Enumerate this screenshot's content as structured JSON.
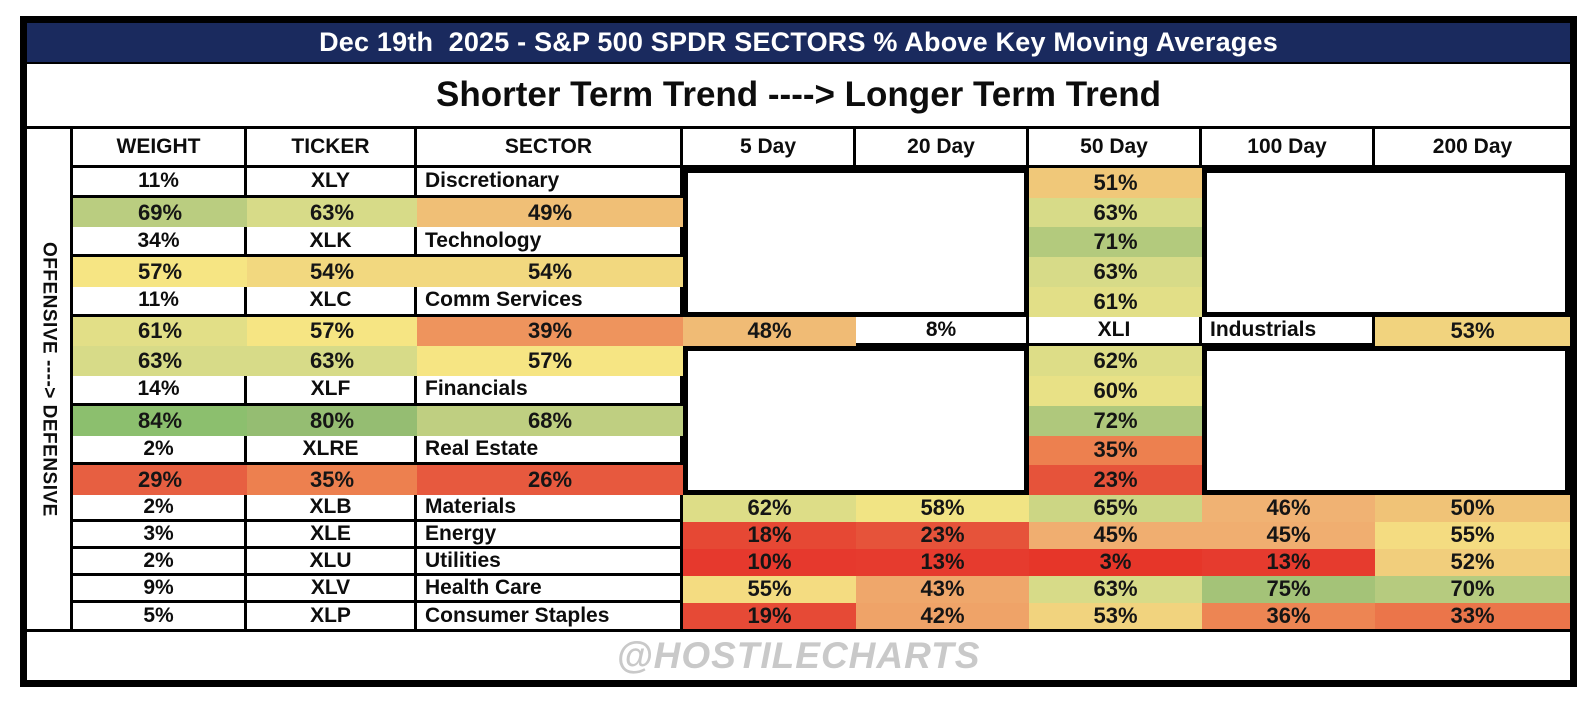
{
  "header": {
    "title": "Dec 19th  2025 - S&P 500 SPDR SECTORS % Above Key Moving Averages",
    "subtitle": "Shorter Term Trend ----> Longer Term Trend",
    "title_bar_bg": "#1A2A5E",
    "title_text_color": "#FFFFFF"
  },
  "side_label": "OFFENSIVE ----> DEFENSIVE",
  "footer": {
    "watermark": "@HOSTILECHARTS",
    "watermark_color": "#C9C9C9"
  },
  "chart_data": {
    "type": "heatmap",
    "title": "Dec 19th 2025 - S&P 500 SPDR SECTORS % Above Key Moving Averages",
    "subtitle": "Shorter Term Trend ----> Longer Term Trend",
    "columns": [
      "WEIGHT",
      "TICKER",
      "SECTOR",
      "5 Day",
      "20 Day",
      "50 Day",
      "100 Day",
      "200 Day"
    ],
    "ma_columns": [
      "5 Day",
      "20 Day",
      "50 Day",
      "100 Day",
      "200 Day"
    ],
    "value_format": "percent",
    "rows": [
      {
        "weight": "11%",
        "ticker": "XLY",
        "sector": "Discretionary",
        "values": [
          51,
          69,
          63,
          49,
          63
        ]
      },
      {
        "weight": "34%",
        "ticker": "XLK",
        "sector": "Technology",
        "values": [
          71,
          57,
          54,
          54,
          63
        ]
      },
      {
        "weight": "11%",
        "ticker": "XLC",
        "sector": "Comm Services",
        "values": [
          61,
          61,
          57,
          39,
          48
        ]
      },
      {
        "weight": "8%",
        "ticker": "XLI",
        "sector": "Industrials",
        "values": [
          53,
          63,
          63,
          57,
          62
        ]
      },
      {
        "weight": "14%",
        "ticker": "XLF",
        "sector": "Financials",
        "values": [
          60,
          84,
          80,
          68,
          72
        ]
      },
      {
        "weight": "2%",
        "ticker": "XLRE",
        "sector": "Real Estate",
        "values": [
          35,
          29,
          35,
          26,
          23
        ]
      },
      {
        "weight": "2%",
        "ticker": "XLB",
        "sector": "Materials",
        "values": [
          62,
          58,
          65,
          46,
          50
        ]
      },
      {
        "weight": "3%",
        "ticker": "XLE",
        "sector": "Energy",
        "values": [
          18,
          23,
          45,
          45,
          55
        ]
      },
      {
        "weight": "2%",
        "ticker": "XLU",
        "sector": "Utilities",
        "values": [
          10,
          13,
          3,
          13,
          52
        ]
      },
      {
        "weight": "9%",
        "ticker": "XLV",
        "sector": "Health Care",
        "values": [
          55,
          43,
          63,
          75,
          70
        ]
      },
      {
        "weight": "5%",
        "ticker": "XLP",
        "sector": "Consumer Staples",
        "values": [
          19,
          42,
          53,
          36,
          33
        ]
      }
    ],
    "color_scale": {
      "stops": [
        [
          0,
          "#E63428"
        ],
        [
          13,
          "#E63B2E"
        ],
        [
          20,
          "#E64D37"
        ],
        [
          29,
          "#E75F41"
        ],
        [
          35,
          "#ED804F"
        ],
        [
          42,
          "#EFA368"
        ],
        [
          46,
          "#F0B273"
        ],
        [
          50,
          "#F0C377"
        ],
        [
          53,
          "#F1D37E"
        ],
        [
          57,
          "#F6E583"
        ],
        [
          60,
          "#E8E186"
        ],
        [
          63,
          "#D7DB88"
        ],
        [
          65,
          "#CCD684"
        ],
        [
          69,
          "#BACD80"
        ],
        [
          72,
          "#AFC87C"
        ],
        [
          75,
          "#A4C378"
        ],
        [
          80,
          "#95BD72"
        ],
        [
          84,
          "#8CBF6E"
        ],
        [
          100,
          "#6FB35F"
        ]
      ]
    },
    "group_boxes": [
      {
        "columns": [
          "5 Day",
          "20 Day"
        ],
        "tickers": [
          "XLY",
          "XLF"
        ]
      },
      {
        "columns": [
          "100 Day",
          "200 Day"
        ],
        "tickers": [
          "XLY",
          "XLF"
        ]
      },
      {
        "columns": [
          "5 Day",
          "20 Day"
        ],
        "tickers": [
          "XLB",
          "XLP"
        ]
      },
      {
        "columns": [
          "100 Day",
          "200 Day"
        ],
        "tickers": [
          "XLB",
          "XLP"
        ]
      }
    ],
    "layout": {
      "legend": false,
      "grid": false
    }
  }
}
